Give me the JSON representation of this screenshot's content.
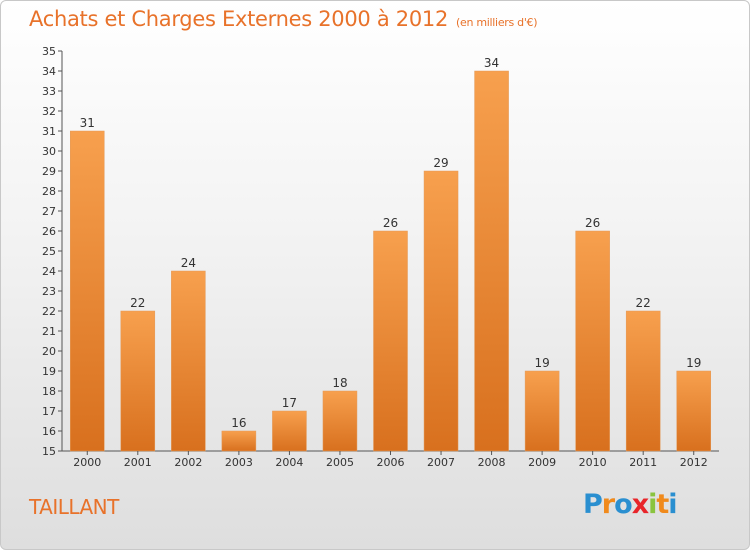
{
  "header": {
    "title": "Achats et Charges Externes 2000 à 2012",
    "subtitle": "(en milliers d'€)"
  },
  "commune": "TAILLANT",
  "logo": {
    "text": "Proxiti",
    "letters": [
      "P",
      "r",
      "o",
      "x",
      "i",
      "t",
      "i"
    ],
    "letter_colors": [
      "#2a8fd0",
      "#f08a1c",
      "#2a8fd0",
      "#e8252a",
      "#8ac43f",
      "#f08a1c",
      "#2a8fd0"
    ]
  },
  "colors": {
    "bar_top": "#f7a04e",
    "bar_bottom": "#d8701e",
    "title": "#e8722a"
  },
  "chart_data": {
    "type": "bar",
    "title": "Achats et Charges Externes 2000 à 2012",
    "subtitle": "(en milliers d'€)",
    "categories": [
      "2000",
      "2001",
      "2002",
      "2003",
      "2004",
      "2005",
      "2006",
      "2007",
      "2008",
      "2009",
      "2010",
      "2011",
      "2012"
    ],
    "values": [
      31,
      22,
      24,
      16,
      17,
      18,
      26,
      29,
      34,
      19,
      26,
      22,
      19
    ],
    "xlabel": "",
    "ylabel": "",
    "ylim": [
      15,
      35
    ],
    "yticks": [
      15,
      16,
      17,
      18,
      19,
      20,
      21,
      22,
      23,
      24,
      25,
      26,
      27,
      28,
      29,
      30,
      31,
      32,
      33,
      34,
      35
    ],
    "grid": false,
    "legend": "none"
  }
}
